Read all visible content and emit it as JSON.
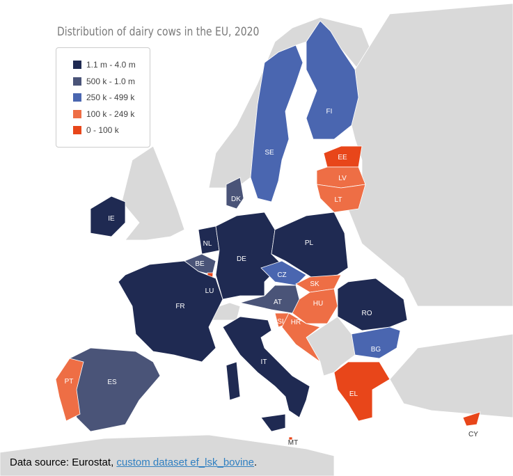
{
  "title": "Distribution of dairy cows in the EU, 2020",
  "legend": [
    {
      "label": "1.1 m - 4.0 m",
      "color": "#1f2a52"
    },
    {
      "label": "500 k - 1.0 m",
      "color": "#4a5478"
    },
    {
      "label": "250 k - 499 k",
      "color": "#4a66b0"
    },
    {
      "label": "100 k - 249 k",
      "color": "#ee6e45"
    },
    {
      "label": "0 - 100 k",
      "color": "#e8461a"
    }
  ],
  "countries": {
    "IE": {
      "label": "IE",
      "class": "1.1 m - 4.0 m"
    },
    "DK": {
      "label": "DK",
      "class": "500 k - 1.0 m"
    },
    "NL": {
      "label": "NL",
      "class": "1.1 m - 4.0 m"
    },
    "BE": {
      "label": "BE",
      "class": "500 k - 1.0 m"
    },
    "LU": {
      "label": "LU",
      "class": "0 - 100 k"
    },
    "DE": {
      "label": "DE",
      "class": "1.1 m - 4.0 m"
    },
    "PL": {
      "label": "PL",
      "class": "1.1 m - 4.0 m"
    },
    "CZ": {
      "label": "CZ",
      "class": "250 k - 499 k"
    },
    "SK": {
      "label": "SK",
      "class": "100 k - 249 k"
    },
    "AT": {
      "label": "AT",
      "class": "500 k - 1.0 m"
    },
    "HU": {
      "label": "HU",
      "class": "100 k - 249 k"
    },
    "SI": {
      "label": "SI",
      "class": "100 k - 249 k"
    },
    "HR": {
      "label": "HR",
      "class": "100 k - 249 k"
    },
    "RO": {
      "label": "RO",
      "class": "1.1 m - 4.0 m"
    },
    "BG": {
      "label": "BG",
      "class": "250 k - 499 k"
    },
    "FR": {
      "label": "FR",
      "class": "1.1 m - 4.0 m"
    },
    "ES": {
      "label": "ES",
      "class": "500 k - 1.0 m"
    },
    "PT": {
      "label": "PT",
      "class": "100 k - 249 k"
    },
    "IT": {
      "label": "IT",
      "class": "1.1 m - 4.0 m"
    },
    "EL": {
      "label": "EL",
      "class": "0 - 100 k"
    },
    "CY": {
      "label": "CY",
      "class": "0 - 100 k"
    },
    "MT": {
      "label": "MT",
      "class": "0 - 100 k"
    },
    "SE": {
      "label": "SE",
      "class": "250 k - 499 k"
    },
    "FI": {
      "label": "FI",
      "class": "250 k - 499 k"
    },
    "EE": {
      "label": "EE",
      "class": "0 - 100 k"
    },
    "LV": {
      "label": "LV",
      "class": "100 k - 249 k"
    },
    "LT": {
      "label": "LT",
      "class": "100 k - 249 k"
    }
  },
  "source": {
    "prefix": "Data source: Eurostat, ",
    "link": "custom dataset ef_lsk_bovine",
    "suffix": "."
  }
}
